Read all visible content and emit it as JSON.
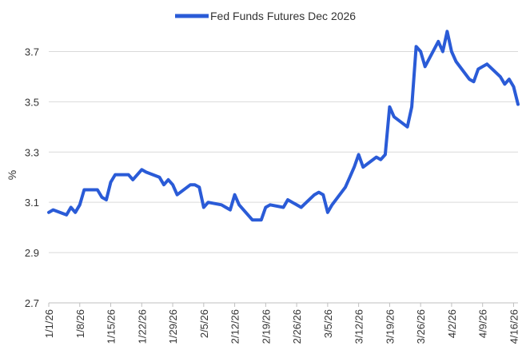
{
  "chart_data": {
    "type": "line",
    "ylabel": "%",
    "ylim": [
      2.7,
      3.8
    ],
    "yticks": [
      2.7,
      2.9,
      3.1,
      3.3,
      3.5,
      3.7
    ],
    "ytick_labels": [
      "2.7",
      "2.9",
      "3.1",
      "3.3",
      "3.5",
      "3.7"
    ],
    "xlim": [
      "2026-01-01",
      "2026-04-17"
    ],
    "xtick_labels": [
      "1/1/26",
      "1/8/26",
      "1/15/26",
      "1/22/26",
      "1/29/26",
      "2/5/26",
      "2/12/26",
      "2/19/26",
      "2/26/26",
      "3/5/26",
      "3/12/26",
      "3/19/26",
      "3/26/26",
      "4/2/26",
      "4/9/26",
      "4/16/26"
    ],
    "xtick_dates": [
      "2026-01-01",
      "2026-01-08",
      "2026-01-15",
      "2026-01-22",
      "2026-01-29",
      "2026-02-05",
      "2026-02-12",
      "2026-02-19",
      "2026-02-26",
      "2026-03-05",
      "2026-03-12",
      "2026-03-19",
      "2026-03-26",
      "2026-04-02",
      "2026-04-09",
      "2026-04-16"
    ],
    "grid": "horizontal",
    "legend": "top-center",
    "series": [
      {
        "name": "Fed Funds Futures Dec 2026",
        "color": "#2a5bd7",
        "x": [
          "2026-01-01",
          "2026-01-02",
          "2026-01-05",
          "2026-01-06",
          "2026-01-07",
          "2026-01-08",
          "2026-01-09",
          "2026-01-12",
          "2026-01-13",
          "2026-01-14",
          "2026-01-15",
          "2026-01-16",
          "2026-01-19",
          "2026-01-20",
          "2026-01-21",
          "2026-01-22",
          "2026-01-23",
          "2026-01-26",
          "2026-01-27",
          "2026-01-28",
          "2026-01-29",
          "2026-01-30",
          "2026-02-02",
          "2026-02-03",
          "2026-02-04",
          "2026-02-05",
          "2026-02-06",
          "2026-02-09",
          "2026-02-10",
          "2026-02-11",
          "2026-02-12",
          "2026-02-13",
          "2026-02-16",
          "2026-02-17",
          "2026-02-18",
          "2026-02-19",
          "2026-02-20",
          "2026-02-23",
          "2026-02-24",
          "2026-02-25",
          "2026-02-26",
          "2026-02-27",
          "2026-03-02",
          "2026-03-03",
          "2026-03-04",
          "2026-03-05",
          "2026-03-06",
          "2026-03-09",
          "2026-03-10",
          "2026-03-11",
          "2026-03-12",
          "2026-03-13",
          "2026-03-16",
          "2026-03-17",
          "2026-03-18",
          "2026-03-19",
          "2026-03-20",
          "2026-03-23",
          "2026-03-24",
          "2026-03-25",
          "2026-03-26",
          "2026-03-27",
          "2026-03-30",
          "2026-03-31",
          "2026-04-01",
          "2026-04-02",
          "2026-04-03",
          "2026-04-06",
          "2026-04-07",
          "2026-04-08",
          "2026-04-09",
          "2026-04-10",
          "2026-04-13",
          "2026-04-14",
          "2026-04-15",
          "2026-04-16",
          "2026-04-17"
        ],
        "values": [
          3.06,
          3.07,
          3.05,
          3.08,
          3.06,
          3.09,
          3.15,
          3.15,
          3.12,
          3.11,
          3.18,
          3.21,
          3.21,
          3.19,
          3.21,
          3.23,
          3.22,
          3.2,
          3.17,
          3.19,
          3.17,
          3.13,
          3.17,
          3.17,
          3.16,
          3.08,
          3.1,
          3.09,
          3.08,
          3.07,
          3.13,
          3.09,
          3.03,
          3.03,
          3.03,
          3.08,
          3.09,
          3.08,
          3.11,
          3.1,
          3.09,
          3.08,
          3.13,
          3.14,
          3.13,
          3.06,
          3.09,
          3.16,
          3.2,
          3.24,
          3.29,
          3.24,
          3.28,
          3.27,
          3.29,
          3.48,
          3.44,
          3.4,
          3.48,
          3.72,
          3.7,
          3.64,
          3.74,
          3.7,
          3.78,
          3.7,
          3.66,
          3.59,
          3.58,
          3.63,
          3.64,
          3.65,
          3.6,
          3.57,
          3.59,
          3.56,
          3.49
        ]
      }
    ]
  }
}
